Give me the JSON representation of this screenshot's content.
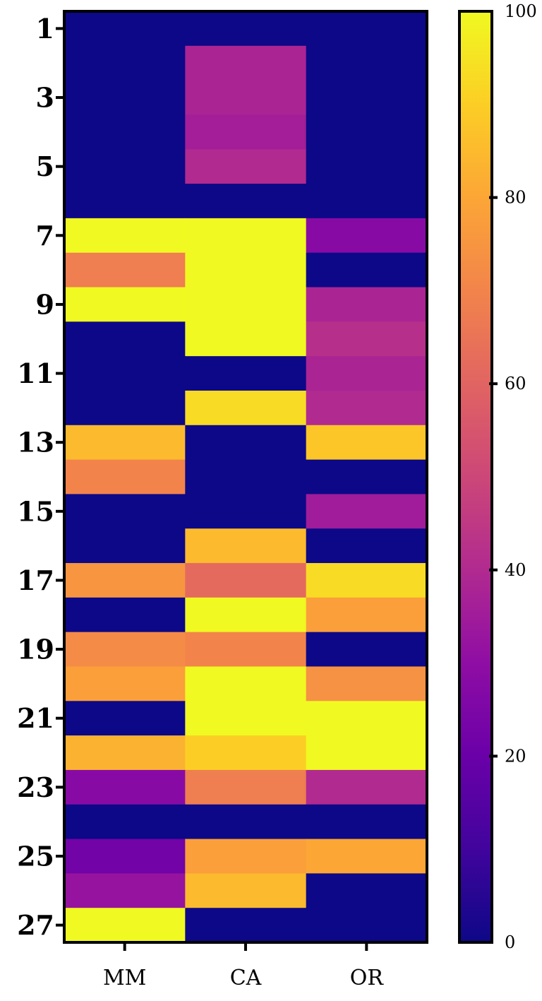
{
  "chart_data": {
    "type": "heatmap",
    "title": "",
    "xlabel": "",
    "ylabel": "",
    "columns": [
      "MM",
      "CA",
      "OR"
    ],
    "rows": [
      1,
      2,
      3,
      4,
      5,
      6,
      7,
      8,
      9,
      10,
      11,
      12,
      13,
      14,
      15,
      16,
      17,
      18,
      19,
      20,
      21,
      22,
      23,
      24,
      25,
      26,
      27
    ],
    "y_tick_labels": [
      "1",
      "3",
      "5",
      "7",
      "9",
      "11",
      "13",
      "15",
      "17",
      "19",
      "21",
      "23",
      "25",
      "27"
    ],
    "values": [
      [
        0,
        0,
        0
      ],
      [
        0,
        38,
        0
      ],
      [
        0,
        38,
        0
      ],
      [
        0,
        36,
        0
      ],
      [
        0,
        40,
        0
      ],
      [
        0,
        0,
        0
      ],
      [
        100,
        100,
        28
      ],
      [
        68,
        100,
        0
      ],
      [
        100,
        100,
        38
      ],
      [
        0,
        100,
        42
      ],
      [
        0,
        0,
        38
      ],
      [
        0,
        93,
        40
      ],
      [
        85,
        0,
        88
      ],
      [
        70,
        0,
        0
      ],
      [
        0,
        0,
        35
      ],
      [
        0,
        85,
        0
      ],
      [
        75,
        62,
        93
      ],
      [
        0,
        100,
        78
      ],
      [
        72,
        70,
        0
      ],
      [
        78,
        100,
        74
      ],
      [
        0,
        100,
        100
      ],
      [
        83,
        90,
        100
      ],
      [
        28,
        68,
        40
      ],
      [
        0,
        0,
        0
      ],
      [
        22,
        78,
        80
      ],
      [
        32,
        85,
        0
      ],
      [
        100,
        0,
        0
      ]
    ],
    "colorbar": {
      "colormap": "plasma",
      "range": [
        0,
        100
      ],
      "tick_labels": [
        "0",
        "20",
        "40",
        "60",
        "80",
        "100"
      ]
    }
  }
}
